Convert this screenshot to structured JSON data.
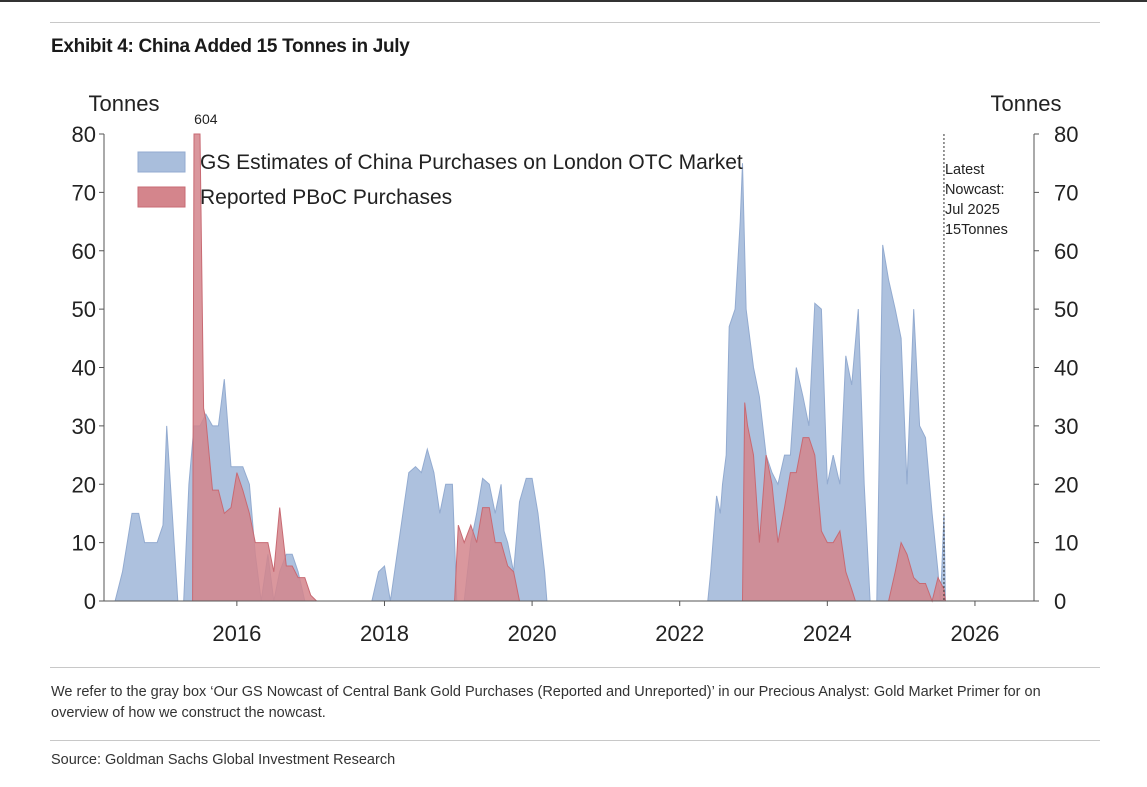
{
  "exhibit": {
    "title": "Exhibit 4: China Added 15 Tonnes in July",
    "note": "We refer to the gray box ‘Our GS Nowcast of Central Bank Gold Purchases (Reported and Unreported)’ in our Precious Analyst: Gold Market Primer for on overview of how we construct the nowcast.",
    "source": "Source: Goldman Sachs Global Investment Research"
  },
  "colors": {
    "gs_fill": "#a9bedc",
    "gs_stroke": "#93abd0",
    "pboc_fill": "#d4858c",
    "pboc_stroke": "#c86a73"
  },
  "chart_data": {
    "type": "area",
    "ylabel_left": "Tonnes",
    "ylabel_right": "Tonnes",
    "ylim": [
      0,
      80
    ],
    "yticks": [
      0,
      10,
      20,
      30,
      40,
      50,
      60,
      70,
      80
    ],
    "xlim": [
      2014.2,
      2026.8
    ],
    "xticks": [
      2016,
      2018,
      2020,
      2022,
      2024,
      2026
    ],
    "legend_position": "top-left",
    "annotations": {
      "overflow_label": "604",
      "overflow_x": 2015.58,
      "nowcast_x": 2025.58,
      "nowcast_lines": [
        "Latest",
        "Nowcast:",
        "Jul 2025",
        "15Tonnes"
      ]
    },
    "series": [
      {
        "name": "GS Estimates of China Purchases on London OTC Market",
        "points": [
          [
            2014.35,
            0
          ],
          [
            2014.45,
            5
          ],
          [
            2014.58,
            15
          ],
          [
            2014.67,
            15
          ],
          [
            2014.75,
            10
          ],
          [
            2014.92,
            10
          ],
          [
            2015.0,
            13
          ],
          [
            2015.05,
            30
          ],
          [
            2015.1,
            20
          ],
          [
            2015.2,
            0
          ],
          [
            2015.28,
            0
          ],
          [
            2015.35,
            20
          ],
          [
            2015.42,
            30
          ],
          [
            2015.5,
            30
          ],
          [
            2015.58,
            32
          ],
          [
            2015.67,
            30
          ],
          [
            2015.75,
            30
          ],
          [
            2015.83,
            38
          ],
          [
            2015.92,
            23
          ],
          [
            2016.0,
            23
          ],
          [
            2016.08,
            23
          ],
          [
            2016.17,
            20
          ],
          [
            2016.25,
            8
          ],
          [
            2016.33,
            0
          ],
          [
            2016.42,
            8
          ],
          [
            2016.5,
            0
          ],
          [
            2016.58,
            5
          ],
          [
            2016.67,
            8
          ],
          [
            2016.75,
            8
          ],
          [
            2016.83,
            5
          ],
          [
            2016.92,
            0
          ],
          [
            2017.83,
            0
          ],
          [
            2017.92,
            5
          ],
          [
            2018.0,
            6
          ],
          [
            2018.08,
            0
          ],
          [
            2018.25,
            15
          ],
          [
            2018.33,
            22
          ],
          [
            2018.42,
            23
          ],
          [
            2018.5,
            22
          ],
          [
            2018.58,
            26
          ],
          [
            2018.67,
            22
          ],
          [
            2018.75,
            15
          ],
          [
            2018.83,
            20
          ],
          [
            2018.92,
            20
          ],
          [
            2018.98,
            0
          ],
          [
            2019.08,
            0
          ],
          [
            2019.17,
            10
          ],
          [
            2019.25,
            15
          ],
          [
            2019.33,
            21
          ],
          [
            2019.42,
            20
          ],
          [
            2019.5,
            15
          ],
          [
            2019.58,
            20
          ],
          [
            2019.62,
            12
          ],
          [
            2019.67,
            10
          ],
          [
            2019.75,
            5
          ],
          [
            2019.83,
            17
          ],
          [
            2019.92,
            21
          ],
          [
            2020.0,
            21
          ],
          [
            2020.08,
            15
          ],
          [
            2020.17,
            5
          ],
          [
            2020.2,
            0
          ],
          [
            2022.38,
            0
          ],
          [
            2022.42,
            5
          ],
          [
            2022.5,
            18
          ],
          [
            2022.55,
            15
          ],
          [
            2022.58,
            20
          ],
          [
            2022.63,
            25
          ],
          [
            2022.67,
            47
          ],
          [
            2022.75,
            50
          ],
          [
            2022.82,
            65
          ],
          [
            2022.85,
            75
          ],
          [
            2022.9,
            50
          ],
          [
            2023.0,
            40
          ],
          [
            2023.08,
            35
          ],
          [
            2023.17,
            25
          ],
          [
            2023.25,
            22
          ],
          [
            2023.33,
            20
          ],
          [
            2023.42,
            25
          ],
          [
            2023.5,
            25
          ],
          [
            2023.58,
            40
          ],
          [
            2023.67,
            35
          ],
          [
            2023.75,
            30
          ],
          [
            2023.83,
            51
          ],
          [
            2023.92,
            50
          ],
          [
            2024.0,
            20
          ],
          [
            2024.08,
            25
          ],
          [
            2024.17,
            20
          ],
          [
            2024.25,
            42
          ],
          [
            2024.33,
            37
          ],
          [
            2024.42,
            50
          ],
          [
            2024.5,
            20
          ],
          [
            2024.58,
            0
          ],
          [
            2024.67,
            0
          ],
          [
            2024.75,
            61
          ],
          [
            2024.83,
            55
          ],
          [
            2024.92,
            50
          ],
          [
            2025.0,
            45
          ],
          [
            2025.08,
            20
          ],
          [
            2025.17,
            50
          ],
          [
            2025.25,
            30
          ],
          [
            2025.33,
            28
          ],
          [
            2025.42,
            15
          ],
          [
            2025.5,
            5
          ],
          [
            2025.53,
            0
          ],
          [
            2025.55,
            5
          ],
          [
            2025.58,
            15
          ],
          [
            2025.6,
            0
          ]
        ]
      },
      {
        "name": "Reported PBoC Purchases",
        "points": [
          [
            2015.4,
            0
          ],
          [
            2015.42,
            80
          ],
          [
            2015.5,
            80
          ],
          [
            2015.55,
            33
          ],
          [
            2015.58,
            31
          ],
          [
            2015.67,
            19
          ],
          [
            2015.75,
            19
          ],
          [
            2015.83,
            15
          ],
          [
            2015.92,
            16
          ],
          [
            2016.0,
            22
          ],
          [
            2016.08,
            19
          ],
          [
            2016.17,
            15
          ],
          [
            2016.25,
            10
          ],
          [
            2016.33,
            10
          ],
          [
            2016.42,
            10
          ],
          [
            2016.5,
            5
          ],
          [
            2016.58,
            16
          ],
          [
            2016.67,
            6
          ],
          [
            2016.75,
            6
          ],
          [
            2016.83,
            4
          ],
          [
            2016.92,
            4
          ],
          [
            2017.0,
            1
          ],
          [
            2017.08,
            0
          ],
          [
            2018.9,
            0
          ],
          [
            2018.95,
            0
          ],
          [
            2019.0,
            13
          ],
          [
            2019.08,
            10
          ],
          [
            2019.17,
            13
          ],
          [
            2019.25,
            10
          ],
          [
            2019.33,
            16
          ],
          [
            2019.42,
            16
          ],
          [
            2019.5,
            10
          ],
          [
            2019.58,
            10
          ],
          [
            2019.67,
            6
          ],
          [
            2019.75,
            5
          ],
          [
            2019.83,
            0
          ],
          [
            2022.85,
            0
          ],
          [
            2022.88,
            34
          ],
          [
            2022.92,
            30
          ],
          [
            2023.0,
            25
          ],
          [
            2023.08,
            10
          ],
          [
            2023.17,
            25
          ],
          [
            2023.25,
            20
          ],
          [
            2023.33,
            10
          ],
          [
            2023.42,
            16
          ],
          [
            2023.5,
            22
          ],
          [
            2023.58,
            22
          ],
          [
            2023.67,
            28
          ],
          [
            2023.75,
            28
          ],
          [
            2023.83,
            25
          ],
          [
            2023.92,
            12
          ],
          [
            2024.0,
            10
          ],
          [
            2024.08,
            10
          ],
          [
            2024.17,
            12
          ],
          [
            2024.25,
            5
          ],
          [
            2024.33,
            2
          ],
          [
            2024.38,
            0
          ],
          [
            2024.83,
            0
          ],
          [
            2024.92,
            5
          ],
          [
            2025.0,
            10
          ],
          [
            2025.08,
            8
          ],
          [
            2025.17,
            4
          ],
          [
            2025.25,
            3
          ],
          [
            2025.33,
            3
          ],
          [
            2025.42,
            0
          ],
          [
            2025.5,
            4
          ],
          [
            2025.58,
            2
          ],
          [
            2025.6,
            0
          ]
        ]
      }
    ]
  }
}
